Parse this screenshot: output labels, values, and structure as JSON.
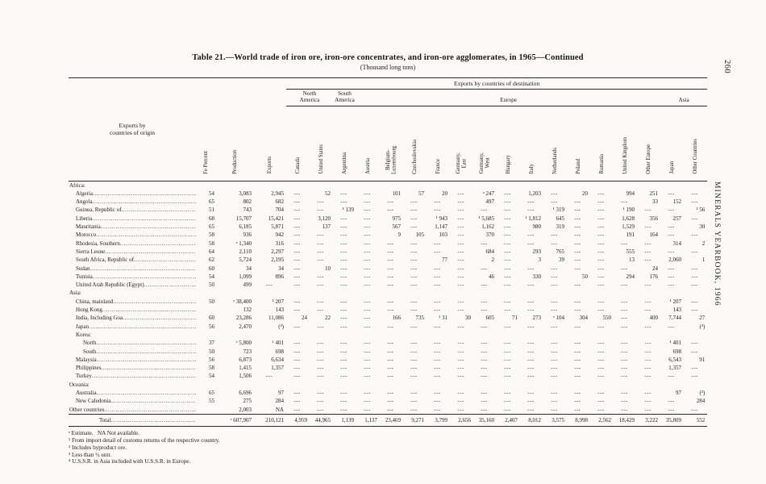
{
  "page": {
    "page_number": "260",
    "side_text": "MINERALS YEARBOOK, 1966",
    "title": "Table 21.—World trade of iron ore, iron-ore concentrates, and iron-ore agglomerates, in 1965—Continued",
    "subtitle": "(Thousand long tons)"
  },
  "table": {
    "origin_header": "Exports by\ncountries of origin",
    "dest_header": "Exports by countries of destination",
    "groups": [
      {
        "label": "North\nAmerica",
        "span": 2
      },
      {
        "label": "South\nAmerica",
        "span": 1
      },
      {
        "label": "Europe",
        "span": 13
      },
      {
        "label": "Asia",
        "span": 2
      }
    ],
    "columns": [
      "Fe Percent",
      "Production",
      "Exports",
      "Canada",
      "United States",
      "Argentina",
      "Austria",
      "Belgium-\nLuxembourg",
      "Czechoslovakia",
      "France",
      "Germany,\nEast",
      "Germany,\nWest",
      "Hungary",
      "Italy",
      "Netherlands",
      "Poland",
      "Rumania",
      "United Kingdom",
      "Other Europe",
      "Japan",
      "Other Countries"
    ],
    "rows": [
      {
        "name": "Africa:",
        "type": "group",
        "indent": 0,
        "values": []
      },
      {
        "name": "Algeria",
        "type": "country",
        "indent": 1,
        "values": [
          "54",
          "3,083",
          "2,945",
          "---",
          "52",
          "---",
          "---",
          "101",
          "57",
          "20",
          "---",
          "ᵉ 247",
          "---",
          "1,203",
          "---",
          "20",
          "---",
          "994",
          "251",
          "---",
          "---"
        ]
      },
      {
        "name": "Angola",
        "type": "country",
        "indent": 1,
        "values": [
          "65",
          "802",
          "682",
          "---",
          "---",
          "---",
          "---",
          "---",
          "---",
          "---",
          "---",
          "497",
          "---",
          "---",
          "---",
          "---",
          "---",
          "---",
          "33",
          "152",
          "---"
        ]
      },
      {
        "name": "Guinea, Republic of",
        "type": "country",
        "indent": 1,
        "values": [
          "51",
          "743",
          "704",
          "---",
          "---",
          "¹ 139",
          "---",
          "---",
          "---",
          "---",
          "---",
          "---",
          "---",
          "---",
          "¹ 319",
          "---",
          "---",
          "¹ 190",
          "---",
          "---",
          "¹ 56"
        ]
      },
      {
        "name": "Liberia",
        "type": "country",
        "indent": 1,
        "values": [
          "68",
          "15,707",
          "15,421",
          "---",
          "3,120",
          "---",
          "---",
          "975",
          "---",
          "¹ 943",
          "---",
          "¹ 5,685",
          "---",
          "¹ 1,812",
          "645",
          "---",
          "---",
          "1,628",
          "356",
          "257",
          "---"
        ]
      },
      {
        "name": "Mauritania",
        "type": "country",
        "indent": 1,
        "values": [
          "65",
          "6,185",
          "5,871",
          "---",
          "137",
          "---",
          "---",
          "567",
          "---",
          "1,147",
          "---",
          "1,162",
          "---",
          "980",
          "319",
          "---",
          "---",
          "1,529",
          "---",
          "---",
          "30"
        ]
      },
      {
        "name": "Morocco",
        "type": "country",
        "indent": 1,
        "values": [
          "58",
          "936",
          "942",
          "---",
          "---",
          "---",
          "---",
          "9",
          "105",
          "103",
          "---",
          "370",
          "---",
          "---",
          "---",
          "---",
          "---",
          "191",
          "164",
          "---",
          "---"
        ]
      },
      {
        "name": "Rhodesia, Southern",
        "type": "country",
        "indent": 1,
        "values": [
          "58",
          "ᵉ 1,340",
          "316",
          "---",
          "---",
          "---",
          "---",
          "---",
          "---",
          "---",
          "---",
          "---",
          "---",
          "---",
          "---",
          "---",
          "---",
          "---",
          "---",
          "314",
          "2"
        ]
      },
      {
        "name": "Sierra Leone",
        "type": "country",
        "indent": 1,
        "values": [
          "64",
          "2,110",
          "2,297",
          "---",
          "---",
          "---",
          "---",
          "---",
          "---",
          "---",
          "---",
          "684",
          "---",
          "293",
          "765",
          "---",
          "---",
          "555",
          "---",
          "---",
          "---"
        ]
      },
      {
        "name": "South Africa, Republic of",
        "type": "country",
        "indent": 1,
        "values": [
          "62",
          "5,724",
          "2,195",
          "---",
          "---",
          "---",
          "---",
          "---",
          "---",
          "77",
          "---",
          "2",
          "---",
          "3",
          "39",
          "---",
          "---",
          "13",
          "---",
          "2,060",
          "1"
        ]
      },
      {
        "name": "Sudan",
        "type": "country",
        "indent": 1,
        "values": [
          "60",
          "34",
          "34",
          "---",
          "10",
          "---",
          "---",
          "---",
          "---",
          "---",
          "---",
          "---",
          "---",
          "---",
          "---",
          "---",
          "---",
          "---",
          "24",
          "---",
          "---"
        ]
      },
      {
        "name": "Tunisia",
        "type": "country",
        "indent": 1,
        "values": [
          "54",
          "1,099",
          "896",
          "---",
          "---",
          "---",
          "---",
          "---",
          "---",
          "---",
          "---",
          "46",
          "---",
          "330",
          "---",
          "50",
          "---",
          "294",
          "176",
          "---",
          "---"
        ]
      },
      {
        "name": "United Arab Republic (Egypt)",
        "type": "country",
        "indent": 1,
        "values": [
          "50",
          "499",
          "---",
          "---",
          "---",
          "---",
          "---",
          "---",
          "---",
          "---",
          "---",
          "---",
          "---",
          "---",
          "---",
          "---",
          "---",
          "---",
          "---",
          "---",
          "---"
        ]
      },
      {
        "name": "Asia:",
        "type": "group",
        "indent": 0,
        "values": []
      },
      {
        "name": "China, mainland",
        "type": "country",
        "indent": 1,
        "values": [
          "50",
          "ᵉ 38,400",
          "¹ 207",
          "---",
          "---",
          "---",
          "---",
          "---",
          "---",
          "---",
          "---",
          "---",
          "---",
          "---",
          "---",
          "---",
          "---",
          "---",
          "---",
          "¹ 207",
          "---"
        ]
      },
      {
        "name": "Hong Kong",
        "type": "country",
        "indent": 1,
        "values": [
          "",
          "132",
          "143",
          "---",
          "---",
          "---",
          "---",
          "---",
          "---",
          "---",
          "---",
          "---",
          "---",
          "---",
          "---",
          "---",
          "---",
          "---",
          "---",
          "143",
          "---"
        ]
      },
      {
        "name": "India, Including Goa",
        "type": "country",
        "indent": 1,
        "values": [
          "60",
          "23,286",
          "11,086",
          "24",
          "22",
          "---",
          "---",
          "166",
          "735",
          "¹ 31",
          "30",
          "605",
          "71",
          "273",
          "ᵉ 104",
          "304",
          "550",
          "---",
          "400",
          "7,744",
          "27"
        ]
      },
      {
        "name": "Japan",
        "type": "country",
        "indent": 1,
        "values": [
          "56",
          "2,470",
          "(³)",
          "---",
          "---",
          "---",
          "---",
          "---",
          "---",
          "---",
          "---",
          "---",
          "---",
          "---",
          "---",
          "---",
          "---",
          "---",
          "---",
          "---",
          "(³)"
        ]
      },
      {
        "name": "Korea:",
        "type": "group",
        "indent": 1,
        "values": []
      },
      {
        "name": "North",
        "type": "country",
        "indent": 2,
        "values": [
          "37",
          "ᵉ 5,800",
          "¹ 401",
          "---",
          "---",
          "---",
          "---",
          "---",
          "---",
          "---",
          "---",
          "---",
          "---",
          "---",
          "---",
          "---",
          "---",
          "---",
          "---",
          "¹ 401",
          "---"
        ]
      },
      {
        "name": "South",
        "type": "country",
        "indent": 2,
        "values": [
          "50",
          "723",
          "698",
          "---",
          "---",
          "---",
          "---",
          "---",
          "---",
          "---",
          "---",
          "---",
          "---",
          "---",
          "---",
          "---",
          "---",
          "---",
          "---",
          "698",
          "---"
        ]
      },
      {
        "name": "Malaysia",
        "type": "country",
        "indent": 1,
        "values": [
          "56",
          "6,873",
          "6,634",
          "---",
          "---",
          "---",
          "---",
          "---",
          "---",
          "---",
          "---",
          "---",
          "---",
          "---",
          "---",
          "---",
          "---",
          "---",
          "---",
          "6,543",
          "91"
        ]
      },
      {
        "name": "Philippines",
        "type": "country",
        "indent": 1,
        "values": [
          "58",
          "1,415",
          "1,357",
          "---",
          "---",
          "---",
          "---",
          "---",
          "---",
          "---",
          "---",
          "---",
          "---",
          "---",
          "---",
          "---",
          "---",
          "---",
          "---",
          "1,357",
          "---"
        ]
      },
      {
        "name": "Turkey",
        "type": "country",
        "indent": 1,
        "values": [
          "54",
          "1,506",
          "---",
          "---",
          "---",
          "---",
          "---",
          "---",
          "---",
          "---",
          "---",
          "---",
          "---",
          "---",
          "---",
          "---",
          "---",
          "---",
          "---",
          "---",
          "---"
        ]
      },
      {
        "name": "Oceania:",
        "type": "group",
        "indent": 0,
        "values": []
      },
      {
        "name": "Australia",
        "type": "country",
        "indent": 1,
        "values": [
          "65",
          "6,696",
          "97",
          "---",
          "---",
          "---",
          "---",
          "---",
          "---",
          "---",
          "---",
          "---",
          "---",
          "---",
          "---",
          "---",
          "---",
          "---",
          "---",
          "97",
          "(³)"
        ]
      },
      {
        "name": "New Caledonia",
        "type": "country",
        "indent": 1,
        "values": [
          "55",
          "275",
          "284",
          "---",
          "---",
          "---",
          "---",
          "---",
          "---",
          "---",
          "---",
          "---",
          "---",
          "---",
          "---",
          "---",
          "---",
          "---",
          "---",
          "---",
          "284"
        ]
      },
      {
        "name": "Other countries",
        "type": "country",
        "indent": 0,
        "values": [
          "",
          "2,003",
          "NA",
          "---",
          "---",
          "---",
          "---",
          "---",
          "---",
          "---",
          "---",
          "---",
          "---",
          "---",
          "---",
          "---",
          "---",
          "---",
          "---",
          "---",
          "---"
        ]
      },
      {
        "name": "Total",
        "type": "total",
        "indent": 0,
        "values": [
          "",
          "ᵉ 607,907",
          "210,121",
          "4,959",
          "44,965",
          "1,139",
          "1,137",
          "23,469",
          "9,271",
          "3,799",
          "2,656",
          "35,160",
          "2,407",
          "8,012",
          "3,575",
          "8,998",
          "2,562",
          "18,429",
          "3,222",
          "35,809",
          "552"
        ]
      }
    ],
    "footnotes": [
      "ᵉ Estimate.   NA Not available.",
      "¹ From import detail of customs returns of the respective country.",
      "² Includes byproduct ore.",
      "³ Less than ½ unit.",
      "⁴ U.S.S.R. in Asia included with U.S.S.R. in Europe."
    ]
  }
}
